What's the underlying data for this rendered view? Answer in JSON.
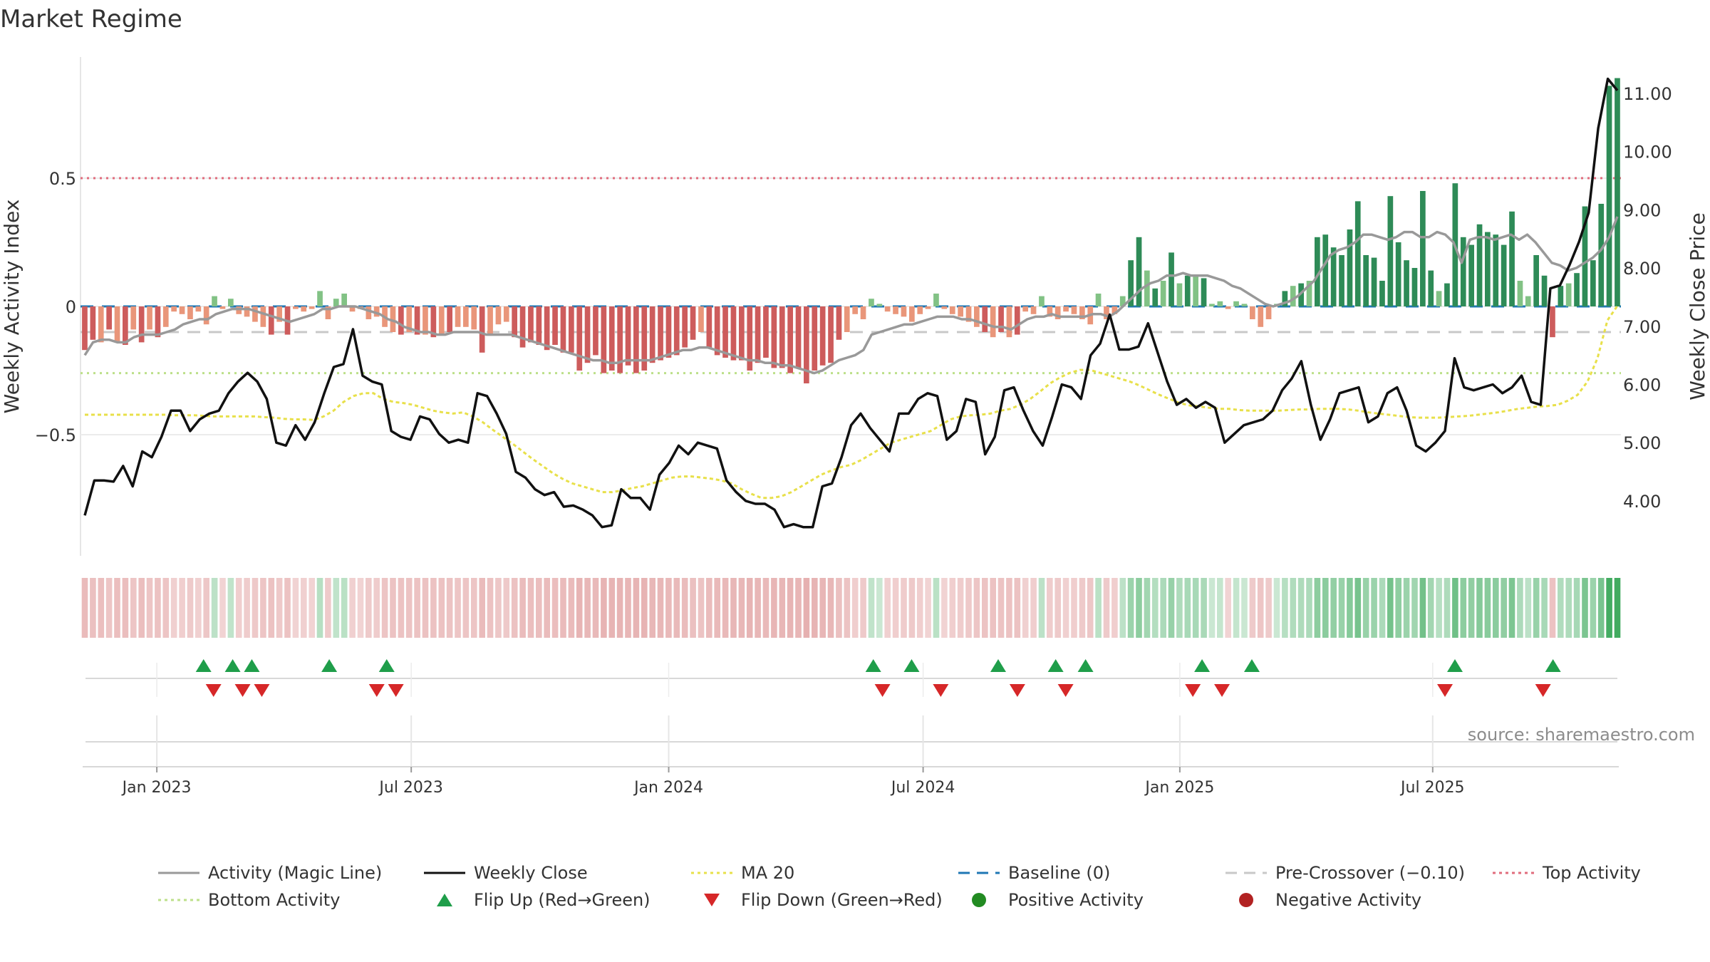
{
  "chart_data": {
    "type": "combo-bar-line",
    "title": "Market Regime",
    "ylabel_left": "Weekly Activity Index",
    "ylabel_right": "Weekly Close Price",
    "xlabel": "",
    "yticks_left": [
      "0.5",
      "0",
      "−0.5"
    ],
    "yticks_left_values": [
      0.5,
      0,
      -0.5
    ],
    "ylim_left": [
      -0.96,
      0.96
    ],
    "yticks_right": [
      "11.00",
      "10.00",
      "9.00",
      "8.00",
      "7.00",
      "6.00",
      "5.00",
      "4.00"
    ],
    "yticks_right_values": [
      11,
      10,
      9,
      8,
      7,
      6,
      5,
      4
    ],
    "ylim_right": [
      3.0,
      11.5
    ],
    "x_tick_labels": [
      "Jan 2023",
      "Jul 2023",
      "Jan 2024",
      "Jul 2024",
      "Jan 2025",
      "Jul 2025"
    ],
    "x_tick_weeks": [
      9.4,
      42.6,
      76.2,
      109.4,
      142.9,
      175.9
    ],
    "num_weeks": 201,
    "reference_lines": {
      "baseline": 0,
      "pre_crossover": -0.1,
      "top_activity": 0.5,
      "bottom_activity": -0.26
    },
    "source_note": "source: sharemaestro.com",
    "weekly_activity": [
      -0.17,
      -0.13,
      -0.14,
      -0.09,
      -0.14,
      -0.15,
      -0.09,
      -0.14,
      -0.09,
      -0.12,
      -0.08,
      -0.02,
      -0.03,
      -0.05,
      -0.02,
      -0.07,
      0.04,
      -0.01,
      0.03,
      -0.03,
      -0.04,
      -0.06,
      -0.08,
      -0.11,
      -0.06,
      -0.11,
      -0.01,
      -0.02,
      -0.01,
      0.06,
      -0.05,
      0.03,
      0.05,
      -0.02,
      -0.01,
      -0.05,
      -0.04,
      -0.08,
      -0.1,
      -0.11,
      -0.1,
      -0.11,
      -0.11,
      -0.12,
      -0.11,
      -0.1,
      -0.08,
      -0.08,
      -0.09,
      -0.18,
      -0.11,
      -0.07,
      -0.06,
      -0.12,
      -0.16,
      -0.14,
      -0.15,
      -0.17,
      -0.15,
      -0.18,
      -0.18,
      -0.25,
      -0.22,
      -0.19,
      -0.26,
      -0.25,
      -0.26,
      -0.23,
      -0.26,
      -0.25,
      -0.22,
      -0.21,
      -0.2,
      -0.19,
      -0.16,
      -0.13,
      -0.1,
      -0.16,
      -0.19,
      -0.2,
      -0.21,
      -0.21,
      -0.25,
      -0.22,
      -0.2,
      -0.24,
      -0.24,
      -0.26,
      -0.24,
      -0.3,
      -0.25,
      -0.23,
      -0.22,
      -0.13,
      -0.1,
      -0.03,
      -0.05,
      0.03,
      0.01,
      -0.02,
      -0.03,
      -0.04,
      -0.06,
      -0.03,
      -0.01,
      0.05,
      -0.01,
      -0.03,
      -0.04,
      -0.06,
      -0.08,
      -0.1,
      -0.12,
      -0.1,
      -0.12,
      -0.11,
      -0.02,
      -0.03,
      0.04,
      -0.04,
      -0.05,
      -0.02,
      -0.03,
      -0.05,
      -0.07,
      0.05,
      -0.05,
      -0.03,
      0.04,
      0.18,
      0.27,
      0.14,
      0.07,
      0.1,
      0.21,
      0.09,
      0.12,
      0.12,
      0.11,
      0.01,
      0.02,
      -0.01,
      0.02,
      0.01,
      -0.05,
      -0.08,
      -0.05,
      0.01,
      0.06,
      0.08,
      0.09,
      0.1,
      0.27,
      0.28,
      0.23,
      0.2,
      0.3,
      0.41,
      0.2,
      0.19,
      0.1,
      0.43,
      0.25,
      0.18,
      0.15,
      0.45,
      0.14,
      0.06,
      0.09,
      0.48,
      0.27,
      0.24,
      0.32,
      0.29,
      0.28,
      0.24,
      0.37,
      0.1,
      0.04,
      0.2,
      0.12,
      -0.12,
      0.08,
      0.09,
      0.13,
      0.39,
      0.18,
      0.4,
      0.86,
      0.89
    ],
    "magic_line": [
      -0.19,
      -0.14,
      -0.13,
      -0.13,
      -0.14,
      -0.14,
      -0.12,
      -0.11,
      -0.11,
      -0.11,
      -0.1,
      -0.09,
      -0.07,
      -0.06,
      -0.05,
      -0.05,
      -0.03,
      -0.02,
      -0.01,
      -0.01,
      -0.01,
      -0.02,
      -0.03,
      -0.04,
      -0.05,
      -0.06,
      -0.05,
      -0.04,
      -0.03,
      -0.01,
      -0.01,
      0.0,
      0.0,
      0.0,
      -0.01,
      -0.02,
      -0.03,
      -0.05,
      -0.06,
      -0.08,
      -0.09,
      -0.1,
      -0.1,
      -0.11,
      -0.11,
      -0.1,
      -0.1,
      -0.1,
      -0.1,
      -0.11,
      -0.11,
      -0.11,
      -0.11,
      -0.12,
      -0.13,
      -0.14,
      -0.15,
      -0.16,
      -0.17,
      -0.18,
      -0.19,
      -0.2,
      -0.21,
      -0.21,
      -0.22,
      -0.22,
      -0.21,
      -0.21,
      -0.21,
      -0.21,
      -0.2,
      -0.19,
      -0.18,
      -0.17,
      -0.17,
      -0.16,
      -0.16,
      -0.17,
      -0.18,
      -0.19,
      -0.2,
      -0.21,
      -0.21,
      -0.22,
      -0.22,
      -0.23,
      -0.23,
      -0.24,
      -0.25,
      -0.26,
      -0.25,
      -0.23,
      -0.21,
      -0.2,
      -0.19,
      -0.17,
      -0.11,
      -0.1,
      -0.09,
      -0.08,
      -0.07,
      -0.07,
      -0.06,
      -0.05,
      -0.04,
      -0.04,
      -0.04,
      -0.05,
      -0.05,
      -0.06,
      -0.07,
      -0.08,
      -0.08,
      -0.09,
      -0.07,
      -0.05,
      -0.04,
      -0.04,
      -0.03,
      -0.04,
      -0.04,
      -0.04,
      -0.04,
      -0.03,
      -0.03,
      -0.04,
      -0.02,
      0.01,
      0.04,
      0.07,
      0.09,
      0.1,
      0.12,
      0.12,
      0.13,
      0.12,
      0.12,
      0.12,
      0.11,
      0.1,
      0.08,
      0.07,
      0.05,
      0.03,
      0.01,
      0.0,
      0.01,
      0.02,
      0.04,
      0.07,
      0.1,
      0.15,
      0.2,
      0.22,
      0.23,
      0.25,
      0.28,
      0.28,
      0.27,
      0.26,
      0.27,
      0.29,
      0.29,
      0.27,
      0.27,
      0.29,
      0.28,
      0.25,
      0.17,
      0.26,
      0.27,
      0.27,
      0.26,
      0.27,
      0.28,
      0.26,
      0.28,
      0.25,
      0.21,
      0.17,
      0.16,
      0.14,
      0.15,
      0.17,
      0.19,
      0.22,
      0.27,
      0.35
    ],
    "weekly_close": [
      3.75,
      4.35,
      4.35,
      4.33,
      4.6,
      4.25,
      4.85,
      4.75,
      5.1,
      5.55,
      5.55,
      5.2,
      5.4,
      5.5,
      5.55,
      5.85,
      6.05,
      6.2,
      6.05,
      5.75,
      5.0,
      4.95,
      5.3,
      5.05,
      5.35,
      5.85,
      6.3,
      6.35,
      6.95,
      6.15,
      6.05,
      6.0,
      5.2,
      5.1,
      5.05,
      5.45,
      5.4,
      5.15,
      5.0,
      5.05,
      5.0,
      5.85,
      5.8,
      5.5,
      5.15,
      4.5,
      4.4,
      4.2,
      4.1,
      4.15,
      3.9,
      3.92,
      3.85,
      3.75,
      3.55,
      3.58,
      4.2,
      4.05,
      4.05,
      3.85,
      4.45,
      4.65,
      4.95,
      4.8,
      5.0,
      4.95,
      4.9,
      4.35,
      4.15,
      4.0,
      3.95,
      3.95,
      3.85,
      3.55,
      3.6,
      3.55,
      3.55,
      4.25,
      4.3,
      4.75,
      5.3,
      5.5,
      5.25,
      5.05,
      4.85,
      5.5,
      5.5,
      5.75,
      5.85,
      5.8,
      5.05,
      5.2,
      5.75,
      5.7,
      4.8,
      5.1,
      5.9,
      5.95,
      5.55,
      5.2,
      4.95,
      5.45,
      6.0,
      5.95,
      5.75,
      6.5,
      6.7,
      7.2,
      6.6,
      6.6,
      6.65,
      7.05,
      6.55,
      6.05,
      5.65,
      5.75,
      5.6,
      5.7,
      5.6,
      5.0,
      5.15,
      5.3,
      5.35,
      5.4,
      5.55,
      5.9,
      6.1,
      6.4,
      5.65,
      5.05,
      5.4,
      5.85,
      5.9,
      5.95,
      5.35,
      5.45,
      5.85,
      5.95,
      5.55,
      4.95,
      4.85,
      5.0,
      5.2,
      6.45,
      5.95,
      5.9,
      5.95,
      6.0,
      5.85,
      5.95,
      6.15,
      5.7,
      5.65,
      7.65,
      7.7,
      8.05,
      8.45,
      8.95,
      10.4,
      11.25,
      11.05
    ],
    "ma20": [
      5.48,
      5.48,
      5.48,
      5.48,
      5.48,
      5.48,
      5.48,
      5.48,
      5.48,
      5.47,
      5.47,
      5.47,
      5.46,
      5.45,
      5.45,
      5.45,
      5.45,
      5.45,
      5.44,
      5.43,
      5.41,
      5.4,
      5.4,
      5.39,
      5.45,
      5.55,
      5.7,
      5.8,
      5.85,
      5.85,
      5.75,
      5.7,
      5.68,
      5.65,
      5.6,
      5.55,
      5.52,
      5.5,
      5.52,
      5.45,
      5.35,
      5.22,
      5.1,
      4.98,
      4.85,
      4.72,
      4.6,
      4.48,
      4.38,
      4.3,
      4.25,
      4.2,
      4.15,
      4.15,
      4.18,
      4.22,
      4.25,
      4.3,
      4.35,
      4.4,
      4.42,
      4.42,
      4.4,
      4.38,
      4.35,
      4.3,
      4.2,
      4.12,
      4.05,
      4.05,
      4.08,
      4.15,
      4.25,
      4.35,
      4.45,
      4.52,
      4.58,
      4.62,
      4.7,
      4.8,
      4.9,
      5.0,
      5.05,
      5.1,
      5.15,
      5.2,
      5.3,
      5.4,
      5.45,
      5.47,
      5.48,
      5.5,
      5.55,
      5.58,
      5.65,
      5.75,
      5.88,
      6.02,
      6.12,
      6.2,
      6.25,
      6.25,
      6.2,
      6.15,
      6.1,
      6.05,
      5.98,
      5.9,
      5.82,
      5.75,
      5.68,
      5.64,
      5.62,
      5.6,
      5.58,
      5.58,
      5.56,
      5.55,
      5.55,
      5.55,
      5.55,
      5.56,
      5.57,
      5.57,
      5.58,
      5.58,
      5.58,
      5.57,
      5.55,
      5.52,
      5.5,
      5.48,
      5.46,
      5.44,
      5.43,
      5.43,
      5.43,
      5.44,
      5.45,
      5.46,
      5.48,
      5.5,
      5.52,
      5.55,
      5.58,
      5.6,
      5.62,
      5.63,
      5.65,
      5.72,
      5.82,
      6.05,
      6.45,
      7.1,
      7.35
    ],
    "regime_strip_activity": [
      -0.17,
      -0.13,
      -0.14,
      -0.09,
      -0.14,
      -0.15,
      -0.09,
      -0.14,
      -0.09,
      -0.12,
      -0.08,
      -0.02,
      -0.03,
      -0.05,
      -0.02,
      -0.07,
      0.04,
      -0.01,
      0.03,
      -0.03,
      -0.04,
      -0.06,
      -0.08,
      -0.11,
      -0.06,
      -0.11,
      -0.01,
      -0.02,
      -0.01,
      0.06,
      -0.05,
      0.03,
      0.05,
      -0.02,
      -0.01,
      -0.05,
      -0.04,
      -0.08,
      -0.1,
      -0.11,
      -0.1,
      -0.11,
      -0.11,
      -0.12,
      -0.11,
      -0.1,
      -0.08,
      -0.08,
      -0.09,
      -0.18,
      -0.11,
      -0.07,
      -0.06,
      -0.12,
      -0.16,
      -0.14,
      -0.15,
      -0.17,
      -0.15,
      -0.18,
      -0.18,
      -0.25,
      -0.22,
      -0.19,
      -0.26,
      -0.25,
      -0.26,
      -0.23,
      -0.26,
      -0.25,
      -0.22,
      -0.21,
      -0.2,
      -0.19,
      -0.16,
      -0.13,
      -0.1,
      -0.16,
      -0.19,
      -0.2,
      -0.21,
      -0.21,
      -0.25,
      -0.22,
      -0.2,
      -0.24,
      -0.24,
      -0.26,
      -0.24,
      -0.3,
      -0.25,
      -0.23,
      -0.22,
      -0.13,
      -0.1,
      -0.03,
      -0.05,
      0.03,
      0.01,
      -0.02,
      -0.03,
      -0.04,
      -0.06,
      -0.03,
      -0.01,
      0.05,
      -0.01,
      -0.03,
      -0.04,
      -0.06,
      -0.08,
      -0.1,
      -0.12,
      -0.1,
      -0.12,
      -0.11,
      -0.02,
      -0.03,
      0.04,
      -0.04,
      -0.05,
      -0.02,
      -0.03,
      -0.05,
      -0.07,
      0.05,
      -0.05,
      -0.03,
      0.04,
      0.18,
      0.27,
      0.14,
      0.07,
      0.1,
      0.21,
      0.09,
      0.12,
      0.12,
      0.11,
      0.01,
      0.02,
      -0.01,
      0.02,
      0.01,
      -0.05,
      -0.08,
      -0.05,
      0.01,
      0.06,
      0.08,
      0.09,
      0.1,
      0.27,
      0.28,
      0.23,
      0.2,
      0.3,
      0.41,
      0.2,
      0.19,
      0.1,
      0.43,
      0.25,
      0.18,
      0.15,
      0.45,
      0.14,
      0.06,
      0.09,
      0.48,
      0.27,
      0.24,
      0.32,
      0.29,
      0.28,
      0.24,
      0.37,
      0.1,
      0.04,
      0.2,
      0.12,
      -0.12,
      0.08,
      0.09,
      0.13,
      0.39,
      0.18,
      0.4,
      0.86,
      0.89
    ],
    "flip_up_weeks": [
      15.5,
      19.3,
      21.8,
      31.9,
      39.4,
      102.9,
      107.9,
      119.2,
      126.7,
      130.6,
      145.8,
      152.3,
      178.8,
      191.6
    ],
    "flip_down_weeks": [
      16.8,
      20.6,
      23.1,
      38.1,
      40.6,
      104.1,
      111.7,
      121.7,
      128.0,
      144.6,
      148.4,
      177.5,
      190.3
    ],
    "colors": {
      "positive_strong": "#2e8b57",
      "positive_weak": "#82c285",
      "negative_strong": "#cd5c5c",
      "negative_weak": "#e9967a",
      "magic_line": "#999999",
      "weekly_close": "#111111",
      "ma20": "#e8e04a",
      "baseline": "#1f77b4",
      "pre_crossover": "#c8c8c8",
      "top_activity": "#e06c7c",
      "bottom_activity": "#bde08a",
      "flip_up": "#1f9e4a",
      "flip_down": "#d62728",
      "positive_dot": "#228b22",
      "negative_dot": "#b22222"
    },
    "legend": [
      {
        "label": "Activity (Magic Line)",
        "kind": "line",
        "color": "#999999",
        "style": "solid"
      },
      {
        "label": "Weekly Close",
        "kind": "line",
        "color": "#111111",
        "style": "solid"
      },
      {
        "label": "MA 20",
        "kind": "line",
        "color": "#e8e04a",
        "style": "dotted"
      },
      {
        "label": "Baseline (0)",
        "kind": "line",
        "color": "#1f77b4",
        "style": "dashed"
      },
      {
        "label": "Pre-Crossover (−0.10)",
        "kind": "line",
        "color": "#c8c8c8",
        "style": "dashed"
      },
      {
        "label": "Top Activity",
        "kind": "line",
        "color": "#e06c7c",
        "style": "dotted"
      },
      {
        "label": "Bottom Activity",
        "kind": "line",
        "color": "#bde08a",
        "style": "dotted"
      },
      {
        "label": "Flip Up (Red→Green)",
        "kind": "triangle-up",
        "color": "#1f9e4a",
        "style": "marker"
      },
      {
        "label": "Flip Down (Green→Red)",
        "kind": "triangle-down",
        "color": "#d62728",
        "style": "marker"
      },
      {
        "label": "Positive Activity",
        "kind": "dot",
        "color": "#228b22",
        "style": "marker"
      },
      {
        "label": "Negative Activity",
        "kind": "dot",
        "color": "#b22222",
        "style": "marker"
      }
    ]
  }
}
